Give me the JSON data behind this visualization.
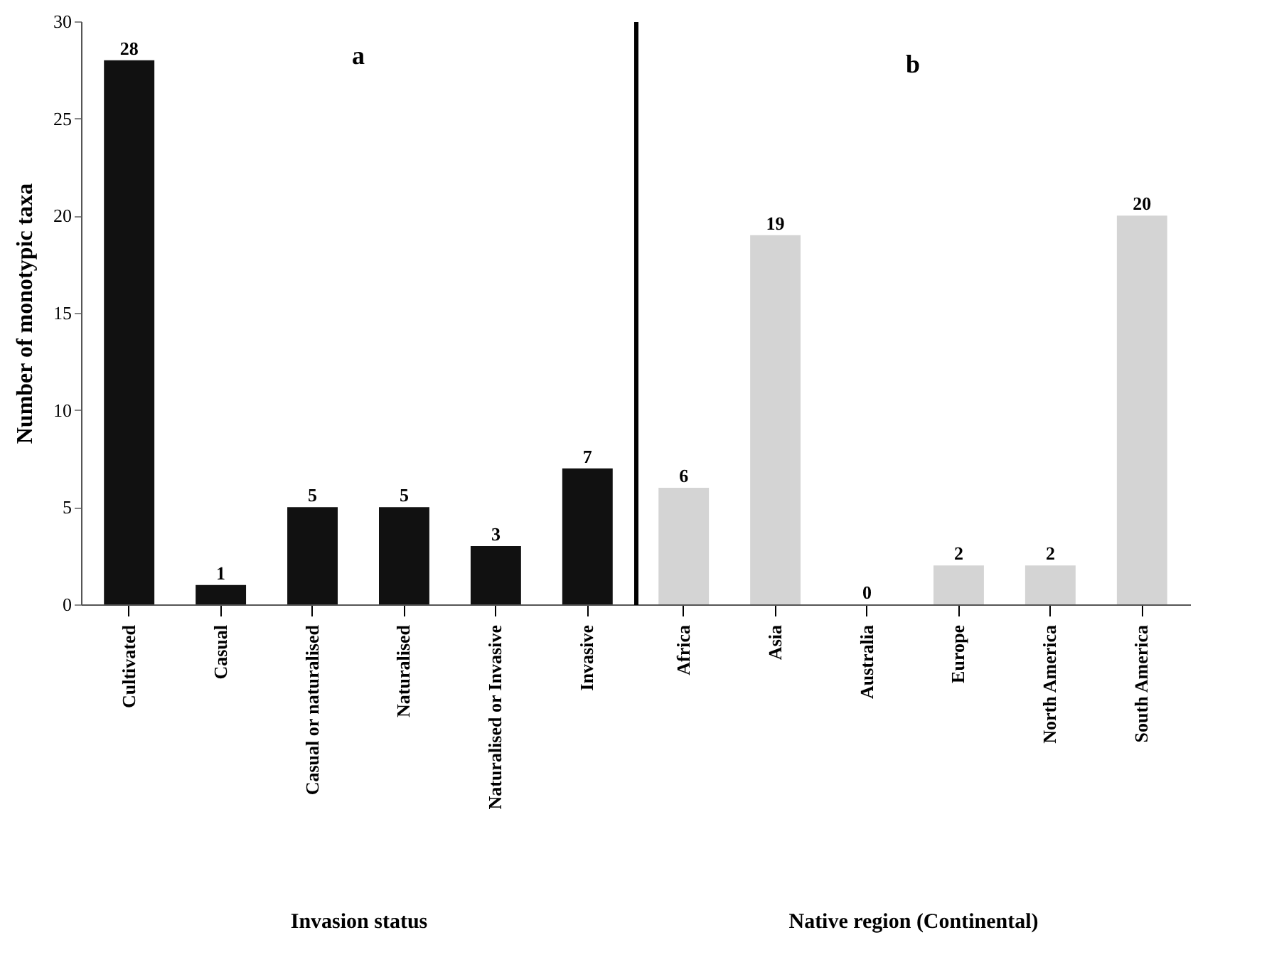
{
  "chart_data": [
    {
      "type": "bar",
      "title": "a",
      "xlabel": "Invasion status",
      "ylabel": "Number of monotypic taxa",
      "categories": [
        "Cultivated",
        "Casual",
        "Casual or naturalised",
        "Naturalised",
        "Naturalised or Invasive",
        "Invasive"
      ],
      "values": [
        28,
        1,
        5,
        5,
        3,
        7
      ],
      "color": "#111111",
      "ylim": [
        0,
        30
      ],
      "yticks": [
        0,
        5,
        10,
        15,
        20,
        25,
        30
      ],
      "data_labels": true
    },
    {
      "type": "bar",
      "title": "b",
      "xlabel": "Native region (Continental)",
      "categories": [
        "Africa",
        "Asia",
        "Australia",
        "Europe",
        "North America",
        "South America"
      ],
      "values": [
        6,
        19,
        0,
        2,
        2,
        20
      ],
      "color": "#d4d4d4",
      "ylim": [
        0,
        30
      ],
      "yticks": [
        0,
        5,
        10,
        15,
        20,
        25,
        30
      ],
      "data_labels": true,
      "tick_labels": "x"
    }
  ]
}
